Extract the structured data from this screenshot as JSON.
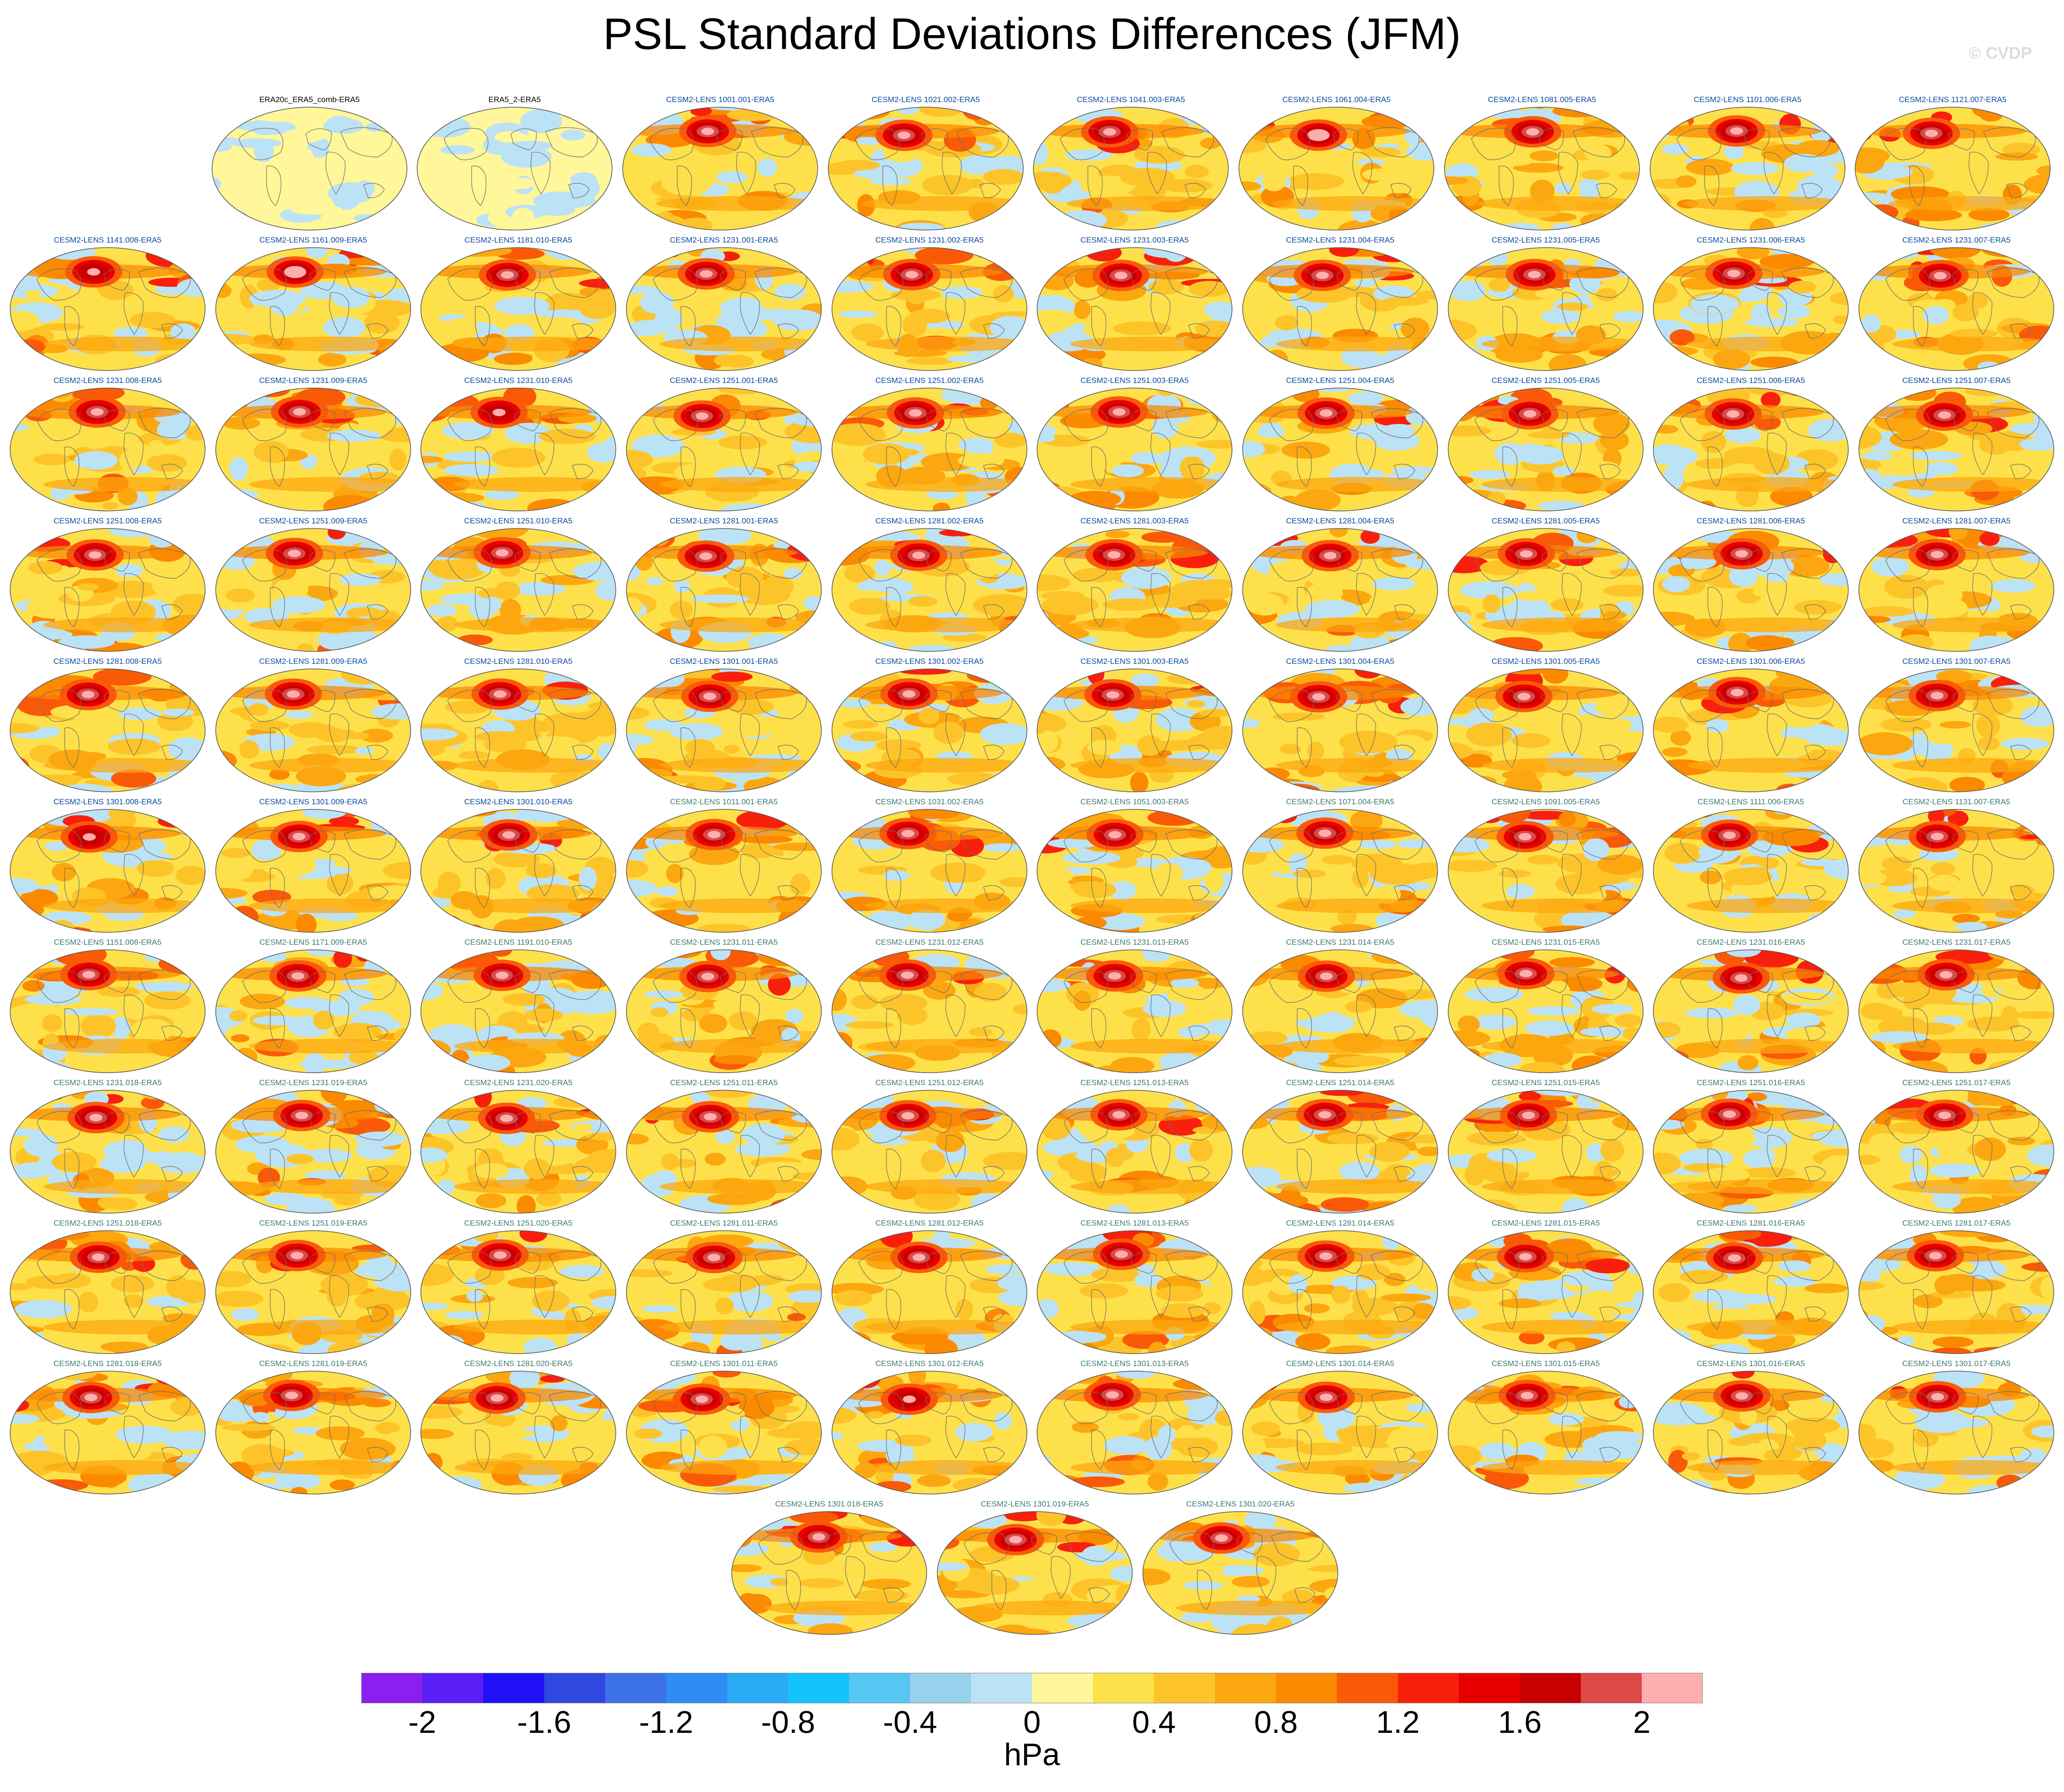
{
  "title": "PSL Standard Deviations Differences (JFM)",
  "watermark": "© CVDP",
  "colorbar": {
    "unit": "hPa",
    "min": -2.2,
    "max": 2.2,
    "step": 0.2,
    "colors": [
      "#8a1ff0",
      "#5a1ff5",
      "#1f10f8",
      "#3048e0",
      "#3c72e6",
      "#2e8cf5",
      "#2aaaf5",
      "#12c4fa",
      "#56c6f2",
      "#98d1ec",
      "#bce2f5",
      "#fff799",
      "#fee14a",
      "#fdc42a",
      "#fca70f",
      "#fb8a00",
      "#fa5a08",
      "#f8200c",
      "#e80000",
      "#c80000",
      "#dd4848",
      "#feaeae"
    ],
    "tick_labels": [
      "-2",
      "-1.6",
      "-1.2",
      "-0.8",
      "-0.4",
      "0",
      "0.4",
      "0.8",
      "1.2",
      "1.6",
      "2"
    ],
    "tick_values": [
      -2,
      -1.6,
      -1.2,
      -0.8,
      -0.4,
      0,
      0.4,
      0.8,
      1.2,
      1.6,
      2
    ]
  },
  "panels": [
    {
      "label": "ERA20c_ERA5_comb-ERA5",
      "kind": "obs",
      "anomaly": 0.1
    },
    {
      "label": "ERA5_2-ERA5",
      "kind": "obs",
      "anomaly": -0.1
    },
    {
      "label": "CESM2-LENS 1001.001-ERA5",
      "kind": "member",
      "anomaly": 1.9
    },
    {
      "label": "CESM2-LENS 1021.002-ERA5",
      "kind": "member",
      "anomaly": 1.8
    },
    {
      "label": "CESM2-LENS 1041.003-ERA5",
      "kind": "member",
      "anomaly": 1.9
    },
    {
      "label": "CESM2-LENS 1061.004-ERA5",
      "kind": "member",
      "anomaly": 2.0
    },
    {
      "label": "CESM2-LENS 1081.005-ERA5",
      "kind": "member",
      "anomaly": 1.9
    },
    {
      "label": "CESM2-LENS 1101.006-ERA5",
      "kind": "member",
      "anomaly": 1.8
    },
    {
      "label": "CESM2-LENS 1121.007-ERA5",
      "kind": "member",
      "anomaly": 1.9
    },
    {
      "label": "CESM2-LENS 1141.008-ERA5",
      "kind": "member",
      "anomaly": 1.7
    },
    {
      "label": "CESM2-LENS 1161.009-ERA5",
      "kind": "member",
      "anomaly": 2.0
    },
    {
      "label": "CESM2-LENS 1181.010-ERA5",
      "kind": "member",
      "anomaly": 1.9
    },
    {
      "label": "CESM2-LENS 1231.001-ERA5",
      "kind": "member",
      "anomaly": 1.9
    },
    {
      "label": "CESM2-LENS 1231.002-ERA5",
      "kind": "member",
      "anomaly": 1.8
    },
    {
      "label": "CESM2-LENS 1231.003-ERA5",
      "kind": "member",
      "anomaly": 1.9
    },
    {
      "label": "CESM2-LENS 1231.004-ERA5",
      "kind": "member",
      "anomaly": 1.9
    },
    {
      "label": "CESM2-LENS 1231.005-ERA5",
      "kind": "member",
      "anomaly": 1.8
    },
    {
      "label": "CESM2-LENS 1231.006-ERA5",
      "kind": "member",
      "anomaly": 1.8
    },
    {
      "label": "CESM2-LENS 1231.007-ERA5",
      "kind": "member",
      "anomaly": 1.9
    },
    {
      "label": "CESM2-LENS 1231.008-ERA5",
      "kind": "member",
      "anomaly": 1.9
    },
    {
      "label": "CESM2-LENS 1231.009-ERA5",
      "kind": "member",
      "anomaly": 1.9
    },
    {
      "label": "CESM2-LENS 1231.010-ERA5",
      "kind": "member",
      "anomaly": 1.7
    },
    {
      "label": "CESM2-LENS 1251.001-ERA5",
      "kind": "member",
      "anomaly": 1.8
    },
    {
      "label": "CESM2-LENS 1251.002-ERA5",
      "kind": "member",
      "anomaly": 1.9
    },
    {
      "label": "CESM2-LENS 1251.003-ERA5",
      "kind": "member",
      "anomaly": 1.8
    },
    {
      "label": "CESM2-LENS 1251.004-ERA5",
      "kind": "member",
      "anomaly": 1.9
    },
    {
      "label": "CESM2-LENS 1251.005-ERA5",
      "kind": "member",
      "anomaly": 1.8
    },
    {
      "label": "CESM2-LENS 1251.006-ERA5",
      "kind": "member",
      "anomaly": 1.9
    },
    {
      "label": "CESM2-LENS 1251.007-ERA5",
      "kind": "member",
      "anomaly": 1.9
    },
    {
      "label": "CESM2-LENS 1251.008-ERA5",
      "kind": "member",
      "anomaly": 1.8
    },
    {
      "label": "CESM2-LENS 1251.009-ERA5",
      "kind": "member",
      "anomaly": 1.9
    },
    {
      "label": "CESM2-LENS 1251.010-ERA5",
      "kind": "member",
      "anomaly": 1.8
    },
    {
      "label": "CESM2-LENS 1281.001-ERA5",
      "kind": "member",
      "anomaly": 1.8
    },
    {
      "label": "CESM2-LENS 1281.002-ERA5",
      "kind": "member",
      "anomaly": 1.9
    },
    {
      "label": "CESM2-LENS 1281.003-ERA5",
      "kind": "member",
      "anomaly": 1.8
    },
    {
      "label": "CESM2-LENS 1281.004-ERA5",
      "kind": "member",
      "anomaly": 1.9
    },
    {
      "label": "CESM2-LENS 1281.005-ERA5",
      "kind": "member",
      "anomaly": 1.8
    },
    {
      "label": "CESM2-LENS 1281.006-ERA5",
      "kind": "member",
      "anomaly": 1.8
    },
    {
      "label": "CESM2-LENS 1281.007-ERA5",
      "kind": "member",
      "anomaly": 1.9
    },
    {
      "label": "CESM2-LENS 1281.008-ERA5",
      "kind": "member",
      "anomaly": 1.9
    },
    {
      "label": "CESM2-LENS 1281.009-ERA5",
      "kind": "member",
      "anomaly": 1.8
    },
    {
      "label": "CESM2-LENS 1281.010-ERA5",
      "kind": "member",
      "anomaly": 1.9
    },
    {
      "label": "CESM2-LENS 1301.001-ERA5",
      "kind": "member",
      "anomaly": 1.8
    },
    {
      "label": "CESM2-LENS 1301.002-ERA5",
      "kind": "member",
      "anomaly": 1.8
    },
    {
      "label": "CESM2-LENS 1301.003-ERA5",
      "kind": "member",
      "anomaly": 1.9
    },
    {
      "label": "CESM2-LENS 1301.004-ERA5",
      "kind": "member",
      "anomaly": 1.9
    },
    {
      "label": "CESM2-LENS 1301.005-ERA5",
      "kind": "member",
      "anomaly": 1.8
    },
    {
      "label": "CESM2-LENS 1301.006-ERA5",
      "kind": "member",
      "anomaly": 1.8
    },
    {
      "label": "CESM2-LENS 1301.007-ERA5",
      "kind": "member",
      "anomaly": 1.9
    },
    {
      "label": "CESM2-LENS 1301.008-ERA5",
      "kind": "member",
      "anomaly": 1.7
    },
    {
      "label": "CESM2-LENS 1301.009-ERA5",
      "kind": "member",
      "anomaly": 1.9
    },
    {
      "label": "CESM2-LENS 1301.010-ERA5",
      "kind": "member",
      "anomaly": 1.9
    },
    {
      "label": "CESM2-LENS 1011.001-ERA5",
      "kind": "member2",
      "anomaly": 1.9
    },
    {
      "label": "CESM2-LENS 1031.002-ERA5",
      "kind": "member2",
      "anomaly": 1.9
    },
    {
      "label": "CESM2-LENS 1051.003-ERA5",
      "kind": "member2",
      "anomaly": 1.8
    },
    {
      "label": "CESM2-LENS 1071.004-ERA5",
      "kind": "member2",
      "anomaly": 1.9
    },
    {
      "label": "CESM2-LENS 1091.005-ERA5",
      "kind": "member2",
      "anomaly": 1.8
    },
    {
      "label": "CESM2-LENS 1111.006-ERA5",
      "kind": "member2",
      "anomaly": 1.9
    },
    {
      "label": "CESM2-LENS 1131.007-ERA5",
      "kind": "member2",
      "anomaly": 1.9
    },
    {
      "label": "CESM2-LENS 1151.008-ERA5",
      "kind": "member2",
      "anomaly": 1.8
    },
    {
      "label": "CESM2-LENS 1171.009-ERA5",
      "kind": "member2",
      "anomaly": 1.9
    },
    {
      "label": "CESM2-LENS 1191.010-ERA5",
      "kind": "member2",
      "anomaly": 1.9
    },
    {
      "label": "CESM2-LENS 1231.011-ERA5",
      "kind": "member2",
      "anomaly": 1.8
    },
    {
      "label": "CESM2-LENS 1231.012-ERA5",
      "kind": "member2",
      "anomaly": 1.9
    },
    {
      "label": "CESM2-LENS 1231.013-ERA5",
      "kind": "member2",
      "anomaly": 1.9
    },
    {
      "label": "CESM2-LENS 1231.014-ERA5",
      "kind": "member2",
      "anomaly": 1.8
    },
    {
      "label": "CESM2-LENS 1231.015-ERA5",
      "kind": "member2",
      "anomaly": 1.9
    },
    {
      "label": "CESM2-LENS 1231.016-ERA5",
      "kind": "member2",
      "anomaly": 1.8
    },
    {
      "label": "CESM2-LENS 1231.017-ERA5",
      "kind": "member2",
      "anomaly": 1.9
    },
    {
      "label": "CESM2-LENS 1231.018-ERA5",
      "kind": "member2",
      "anomaly": 1.8
    },
    {
      "label": "CESM2-LENS 1231.019-ERA5",
      "kind": "member2",
      "anomaly": 1.9
    },
    {
      "label": "CESM2-LENS 1231.020-ERA5",
      "kind": "member2",
      "anomaly": 1.9
    },
    {
      "label": "CESM2-LENS 1251.011-ERA5",
      "kind": "member2",
      "anomaly": 1.8
    },
    {
      "label": "CESM2-LENS 1251.012-ERA5",
      "kind": "member2",
      "anomaly": 1.8
    },
    {
      "label": "CESM2-LENS 1251.013-ERA5",
      "kind": "member2",
      "anomaly": 1.8
    },
    {
      "label": "CESM2-LENS 1251.014-ERA5",
      "kind": "member2",
      "anomaly": 1.9
    },
    {
      "label": "CESM2-LENS 1251.015-ERA5",
      "kind": "member2",
      "anomaly": 1.8
    },
    {
      "label": "CESM2-LENS 1251.016-ERA5",
      "kind": "member2",
      "anomaly": 1.9
    },
    {
      "label": "CESM2-LENS 1251.017-ERA5",
      "kind": "member2",
      "anomaly": 1.8
    },
    {
      "label": "CESM2-LENS 1251.018-ERA5",
      "kind": "member2",
      "anomaly": 1.8
    },
    {
      "label": "CESM2-LENS 1251.019-ERA5",
      "kind": "member2",
      "anomaly": 1.8
    },
    {
      "label": "CESM2-LENS 1251.020-ERA5",
      "kind": "member2",
      "anomaly": 1.9
    },
    {
      "label": "CESM2-LENS 1281.011-ERA5",
      "kind": "member2",
      "anomaly": 1.9
    },
    {
      "label": "CESM2-LENS 1281.012-ERA5",
      "kind": "member2",
      "anomaly": 1.8
    },
    {
      "label": "CESM2-LENS 1281.013-ERA5",
      "kind": "member2",
      "anomaly": 1.9
    },
    {
      "label": "CESM2-LENS 1281.014-ERA5",
      "kind": "member2",
      "anomaly": 1.8
    },
    {
      "label": "CESM2-LENS 1281.015-ERA5",
      "kind": "member2",
      "anomaly": 1.9
    },
    {
      "label": "CESM2-LENS 1281.016-ERA5",
      "kind": "member2",
      "anomaly": 1.8
    },
    {
      "label": "CESM2-LENS 1281.017-ERA5",
      "kind": "member2",
      "anomaly": 1.9
    },
    {
      "label": "CESM2-LENS 1281.018-ERA5",
      "kind": "member2",
      "anomaly": 1.8
    },
    {
      "label": "CESM2-LENS 1281.019-ERA5",
      "kind": "member2",
      "anomaly": 1.9
    },
    {
      "label": "CESM2-LENS 1281.020-ERA5",
      "kind": "member2",
      "anomaly": 1.8
    },
    {
      "label": "CESM2-LENS 1301.011-ERA5",
      "kind": "member2",
      "anomaly": 1.9
    },
    {
      "label": "CESM2-LENS 1301.012-ERA5",
      "kind": "member2",
      "anomaly": 1.7
    },
    {
      "label": "CESM2-LENS 1301.013-ERA5",
      "kind": "member2",
      "anomaly": 1.8
    },
    {
      "label": "CESM2-LENS 1301.014-ERA5",
      "kind": "member2",
      "anomaly": 1.9
    },
    {
      "label": "CESM2-LENS 1301.015-ERA5",
      "kind": "member2",
      "anomaly": 1.9
    },
    {
      "label": "CESM2-LENS 1301.016-ERA5",
      "kind": "member2",
      "anomaly": 1.8
    },
    {
      "label": "CESM2-LENS 1301.017-ERA5",
      "kind": "member2",
      "anomaly": 1.9
    },
    {
      "label": "CESM2-LENS 1301.018-ERA5",
      "kind": "member2",
      "anomaly": 1.8
    },
    {
      "label": "CESM2-LENS 1301.019-ERA5",
      "kind": "member2",
      "anomaly": 1.8
    },
    {
      "label": "CESM2-LENS 1301.020-ERA5",
      "kind": "member2",
      "anomaly": 1.9
    }
  ],
  "label_colors": {
    "obs": "#000000",
    "member": "#0a4aa0",
    "member2": "#3a7a72"
  }
}
